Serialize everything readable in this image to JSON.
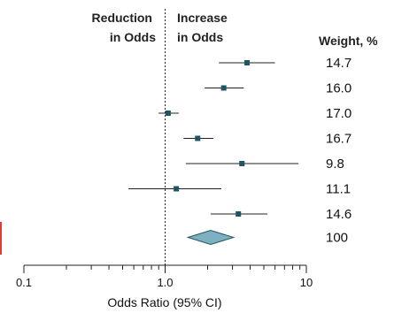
{
  "chart_data": {
    "type": "forest",
    "x_scale": "log",
    "xlim": [
      0.1,
      10
    ],
    "reference_line": 1.0,
    "xlabel": "Odds Ratio (95% CI)",
    "x_ticks": [
      {
        "value": 0.1,
        "label": "0.1"
      },
      {
        "value": 1,
        "label": "1.0"
      },
      {
        "value": 10,
        "label": "10"
      }
    ],
    "direction_labels": {
      "left": [
        "Reduction",
        "in Odds"
      ],
      "right": [
        "Increase",
        "in Odds"
      ]
    },
    "weight_header": "Weight, %",
    "studies": [
      {
        "or": 3.8,
        "ci_low": 2.4,
        "ci_high": 6.0,
        "weight": "14.7"
      },
      {
        "or": 2.6,
        "ci_low": 1.9,
        "ci_high": 3.6,
        "weight": "16.0"
      },
      {
        "or": 1.05,
        "ci_low": 0.9,
        "ci_high": 1.25,
        "weight": "17.0"
      },
      {
        "or": 1.7,
        "ci_low": 1.35,
        "ci_high": 2.2,
        "weight": "16.7"
      },
      {
        "or": 3.5,
        "ci_low": 1.4,
        "ci_high": 8.8,
        "weight": "9.8"
      },
      {
        "or": 1.2,
        "ci_low": 0.55,
        "ci_high": 2.5,
        "weight": "11.1"
      },
      {
        "or": 3.3,
        "ci_low": 2.1,
        "ci_high": 5.3,
        "weight": "14.6"
      }
    ],
    "pooled": {
      "or": 2.1,
      "ci_low": 1.45,
      "ci_high": 3.05,
      "weight": "100"
    },
    "colors": {
      "marker": "#1f5563",
      "diamond_fill": "#7fb0c2",
      "diamond_stroke": "#1f5563",
      "line": "#222222",
      "edge_mark": "#e53935"
    }
  }
}
